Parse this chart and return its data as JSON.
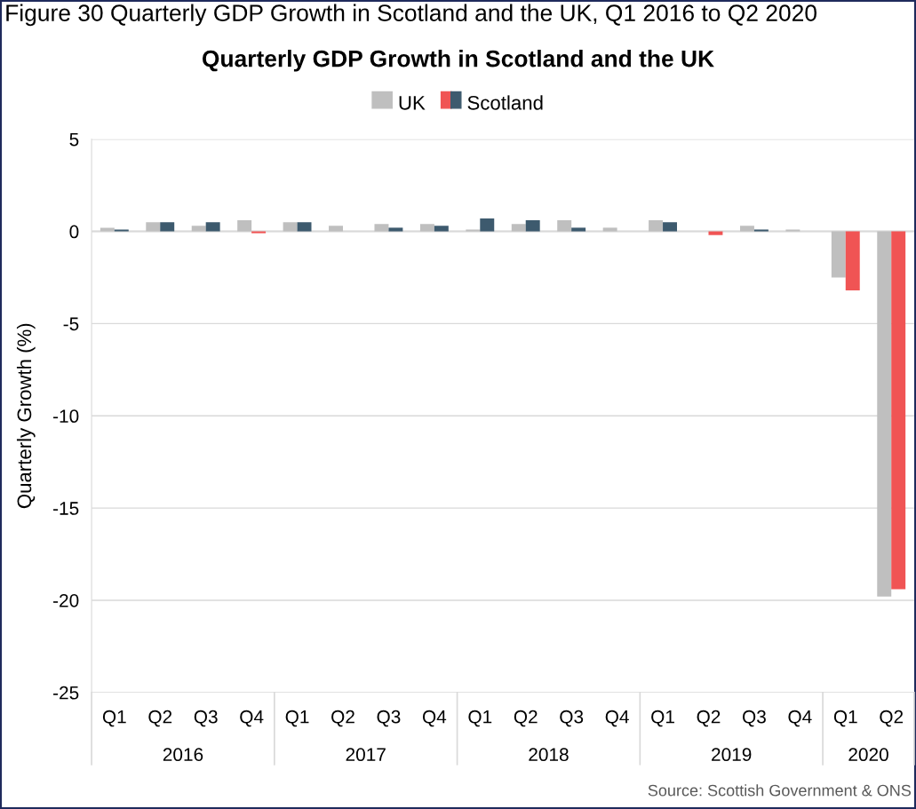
{
  "chart_data": {
    "type": "bar",
    "title": "Quarterly GDP Growth in Scotland and the UK",
    "ylabel": "Quarterly Growth (%)",
    "annotations": [
      "Figure 30 Quarterly GDP Growth in Scotland and the UK, Q1 2016 to Q2 2020",
      "2016",
      "2017",
      "2018",
      "2019",
      "2020",
      "Source: Scottish Government & ONS"
    ],
    "categories": [
      "Q1",
      "Q2",
      "Q3",
      "Q4",
      "Q1",
      "Q2",
      "Q3",
      "Q4",
      "Q1",
      "Q2",
      "Q3",
      "Q4",
      "Q1",
      "Q2",
      "Q3",
      "Q4",
      "Q1",
      "Q2"
    ],
    "series": [
      {
        "name": "UK",
        "color": "#bfbfbf",
        "values": [
          0.2,
          0.5,
          0.3,
          0.6,
          0.5,
          0.3,
          0.4,
          0.4,
          0.1,
          0.4,
          0.6,
          0.2,
          0.6,
          0.0,
          0.3,
          0.1,
          -2.5,
          -19.8
        ]
      },
      {
        "name": "Scotland",
        "color": "#3d5a6e",
        "colors": [
          "#3d5a6e",
          "#3d5a6e",
          "#3d5a6e",
          "#f05454",
          "#3d5a6e",
          "#3d5a6e",
          "#3d5a6e",
          "#3d5a6e",
          "#3d5a6e",
          "#3d5a6e",
          "#3d5a6e",
          "#3d5a6e",
          "#3d5a6e",
          "#f05454",
          "#3d5a6e",
          "#3d5a6e",
          "#f05454",
          "#f05454"
        ],
        "values": [
          0.1,
          0.5,
          0.5,
          -0.1,
          0.5,
          0.0,
          0.2,
          0.3,
          0.7,
          0.6,
          0.2,
          0.0,
          0.5,
          -0.2,
          0.1,
          0.0,
          -3.2,
          -19.4
        ]
      }
    ],
    "ylim": [
      -25,
      5
    ],
    "yticks": [
      -25,
      -20,
      -15,
      -10,
      -5,
      0,
      5
    ],
    "grid": "y",
    "legend": "top"
  }
}
